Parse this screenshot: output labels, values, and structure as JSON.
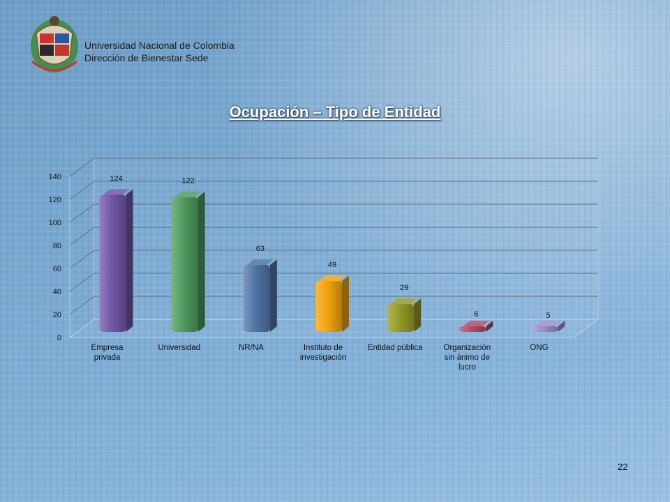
{
  "header": {
    "org_line1": "Universidad Nacional de Colombia",
    "org_line2": "Dirección de Bienestar Sede"
  },
  "slide": {
    "title": "Ocupación – Tipo de Entidad",
    "page_number": "22"
  },
  "chart_data": {
    "type": "bar",
    "style": "3d-cylinder",
    "title": "",
    "xlabel": "",
    "ylabel": "",
    "ylim": [
      0,
      140
    ],
    "yticks": [
      "0",
      "20",
      "40",
      "60",
      "80",
      "100",
      "120",
      "140"
    ],
    "grid": true,
    "legend": "none",
    "categories": [
      [
        "Empresa",
        "privada"
      ],
      [
        "Universidad"
      ],
      [
        "NR/NA"
      ],
      [
        "Instituto de",
        "investigación"
      ],
      [
        "Entidad pública"
      ],
      [
        "Organización",
        "sin ánimo de",
        "lucro"
      ],
      [
        "ONG"
      ]
    ],
    "values": [
      124,
      122,
      63,
      49,
      29,
      6,
      5
    ],
    "data_labels": [
      "124",
      "122",
      "63",
      "49",
      "29",
      "6",
      "5"
    ],
    "colors": [
      "#7256a8",
      "#4f9a5e",
      "#4f74a6",
      "#f1a30d",
      "#949a24",
      "#b44a67",
      "#9c8cc8"
    ]
  }
}
